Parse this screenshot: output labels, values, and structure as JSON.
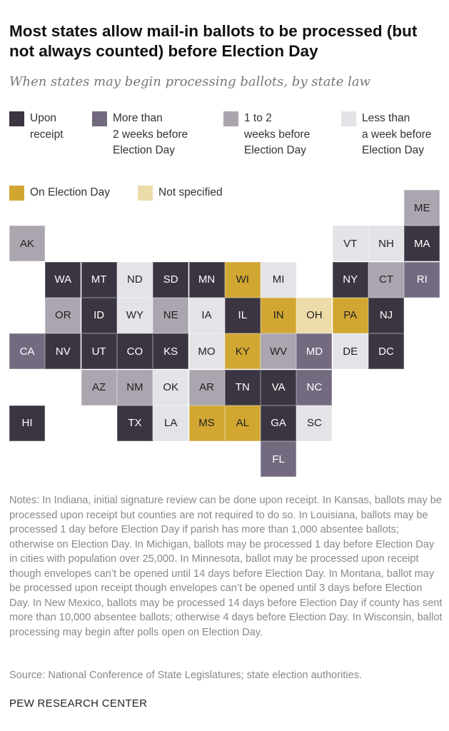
{
  "title": "Most states allow mail-in ballots to be processed (but not always counted) before Election Day",
  "subtitle": "When states may begin processing ballots, by state law",
  "legend": [
    {
      "key": "receipt",
      "label": "Upon\nreceipt",
      "color": "#3a3540",
      "text": "#fff"
    },
    {
      "key": "gt2",
      "label": "More than\n2 weeks before\nElection Day",
      "color": "#736a80",
      "text": "#fff"
    },
    {
      "key": "1to2",
      "label": "1 to 2\nweeks before\nElection Day",
      "color": "#aba5b0",
      "text": "#222"
    },
    {
      "key": "lt1",
      "label": "Less than\na week before\nElection Day",
      "color": "#e4e3e8",
      "text": "#222"
    },
    {
      "key": "eday",
      "label": "On Election Day",
      "color": "#d1a732",
      "text": "#222"
    },
    {
      "key": "ns",
      "label": "Not specified",
      "color": "#eddcaa",
      "text": "#222"
    }
  ],
  "chart_data": {
    "type": "tile-map",
    "states": [
      {
        "abbr": "ME",
        "row": 0,
        "col": 11,
        "cat": "1to2"
      },
      {
        "abbr": "AK",
        "row": 1,
        "col": 0,
        "cat": "1to2"
      },
      {
        "abbr": "VT",
        "row": 1,
        "col": 9,
        "cat": "lt1"
      },
      {
        "abbr": "NH",
        "row": 1,
        "col": 10,
        "cat": "lt1"
      },
      {
        "abbr": "MA",
        "row": 1,
        "col": 11,
        "cat": "receipt"
      },
      {
        "abbr": "WA",
        "row": 2,
        "col": 1,
        "cat": "receipt"
      },
      {
        "abbr": "MT",
        "row": 2,
        "col": 2,
        "cat": "receipt"
      },
      {
        "abbr": "ND",
        "row": 2,
        "col": 3,
        "cat": "lt1"
      },
      {
        "abbr": "SD",
        "row": 2,
        "col": 4,
        "cat": "receipt"
      },
      {
        "abbr": "MN",
        "row": 2,
        "col": 5,
        "cat": "receipt"
      },
      {
        "abbr": "WI",
        "row": 2,
        "col": 6,
        "cat": "eday"
      },
      {
        "abbr": "MI",
        "row": 2,
        "col": 7,
        "cat": "lt1"
      },
      {
        "abbr": "NY",
        "row": 2,
        "col": 9,
        "cat": "receipt"
      },
      {
        "abbr": "CT",
        "row": 2,
        "col": 10,
        "cat": "1to2"
      },
      {
        "abbr": "RI",
        "row": 2,
        "col": 11,
        "cat": "gt2"
      },
      {
        "abbr": "OR",
        "row": 3,
        "col": 1,
        "cat": "1to2"
      },
      {
        "abbr": "ID",
        "row": 3,
        "col": 2,
        "cat": "receipt"
      },
      {
        "abbr": "WY",
        "row": 3,
        "col": 3,
        "cat": "lt1"
      },
      {
        "abbr": "NE",
        "row": 3,
        "col": 4,
        "cat": "1to2"
      },
      {
        "abbr": "IA",
        "row": 3,
        "col": 5,
        "cat": "lt1"
      },
      {
        "abbr": "IL",
        "row": 3,
        "col": 6,
        "cat": "receipt"
      },
      {
        "abbr": "IN",
        "row": 3,
        "col": 7,
        "cat": "eday"
      },
      {
        "abbr": "OH",
        "row": 3,
        "col": 8,
        "cat": "ns"
      },
      {
        "abbr": "PA",
        "row": 3,
        "col": 9,
        "cat": "eday"
      },
      {
        "abbr": "NJ",
        "row": 3,
        "col": 10,
        "cat": "receipt"
      },
      {
        "abbr": "CA",
        "row": 4,
        "col": 0,
        "cat": "gt2"
      },
      {
        "abbr": "NV",
        "row": 4,
        "col": 1,
        "cat": "receipt"
      },
      {
        "abbr": "UT",
        "row": 4,
        "col": 2,
        "cat": "receipt"
      },
      {
        "abbr": "CO",
        "row": 4,
        "col": 3,
        "cat": "receipt"
      },
      {
        "abbr": "KS",
        "row": 4,
        "col": 4,
        "cat": "receipt"
      },
      {
        "abbr": "MO",
        "row": 4,
        "col": 5,
        "cat": "lt1"
      },
      {
        "abbr": "KY",
        "row": 4,
        "col": 6,
        "cat": "eday"
      },
      {
        "abbr": "WV",
        "row": 4,
        "col": 7,
        "cat": "1to2"
      },
      {
        "abbr": "MD",
        "row": 4,
        "col": 8,
        "cat": "gt2"
      },
      {
        "abbr": "DE",
        "row": 4,
        "col": 9,
        "cat": "lt1"
      },
      {
        "abbr": "DC",
        "row": 4,
        "col": 10,
        "cat": "receipt"
      },
      {
        "abbr": "AZ",
        "row": 5,
        "col": 2,
        "cat": "1to2"
      },
      {
        "abbr": "NM",
        "row": 5,
        "col": 3,
        "cat": "1to2"
      },
      {
        "abbr": "OK",
        "row": 5,
        "col": 4,
        "cat": "lt1"
      },
      {
        "abbr": "AR",
        "row": 5,
        "col": 5,
        "cat": "1to2"
      },
      {
        "abbr": "TN",
        "row": 5,
        "col": 6,
        "cat": "receipt"
      },
      {
        "abbr": "VA",
        "row": 5,
        "col": 7,
        "cat": "receipt"
      },
      {
        "abbr": "NC",
        "row": 5,
        "col": 8,
        "cat": "gt2"
      },
      {
        "abbr": "HI",
        "row": 6,
        "col": 0,
        "cat": "receipt"
      },
      {
        "abbr": "TX",
        "row": 6,
        "col": 3,
        "cat": "receipt"
      },
      {
        "abbr": "LA",
        "row": 6,
        "col": 4,
        "cat": "lt1"
      },
      {
        "abbr": "MS",
        "row": 6,
        "col": 5,
        "cat": "eday"
      },
      {
        "abbr": "AL",
        "row": 6,
        "col": 6,
        "cat": "eday"
      },
      {
        "abbr": "GA",
        "row": 6,
        "col": 7,
        "cat": "receipt"
      },
      {
        "abbr": "SC",
        "row": 6,
        "col": 8,
        "cat": "lt1"
      },
      {
        "abbr": "FL",
        "row": 7,
        "col": 7,
        "cat": "gt2"
      }
    ]
  },
  "notes": "Notes: In Indiana, initial signature review can be done upon receipt. In Kansas, ballots may be processed upon receipt but counties are not required to do so. In Louisiana, ballots may be processed 1 day before Election Day if parish has more than 1,000 absentee ballots; otherwise on Election Day. In Michigan, ballots may be processed 1 day before Election Day in cities with population over 25,000. In Minnesota, ballot may be processed upon receipt though envelopes can’t be opened until 14 days before Election Day. In Montana, ballot may be processed upon receipt though envelopes can’t be opened until 3 days before Election Day. In New Mexico, ballots may be processed 14 days before Election Day if county has sent more than 10,000 absentee ballots; otherwise 4 days before Election Day. In Wisconsin, ballot processing may begin after polls open on Election Day.",
  "source": "Source: National Conference of State Legislatures; state election authorities.",
  "footer": "PEW RESEARCH CENTER"
}
